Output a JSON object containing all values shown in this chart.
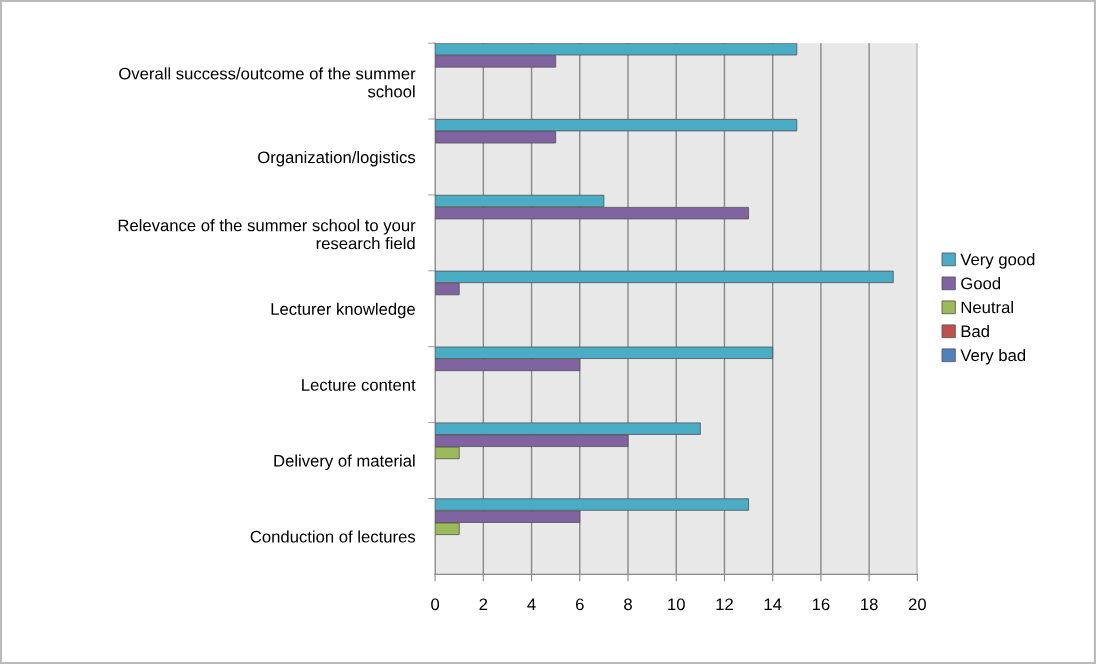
{
  "chart_data": {
    "type": "bar",
    "orientation": "horizontal",
    "categories": [
      "Overall success/outcome of the summer\nschool",
      "Organization/logistics",
      "Relevance of the summer school to your\nresearch field",
      "Lecturer knowledge",
      "Lecture content",
      "Delivery of material",
      "Conduction of lectures"
    ],
    "series": [
      {
        "name": "Very good",
        "color": "#4bacc6",
        "values": [
          15,
          15,
          7,
          19,
          14,
          11,
          13
        ]
      },
      {
        "name": "Good",
        "color": "#8064a2",
        "values": [
          5,
          5,
          13,
          1,
          6,
          8,
          6
        ]
      },
      {
        "name": "Neutral",
        "color": "#9bbb59",
        "values": [
          0,
          0,
          0,
          0,
          0,
          1,
          1
        ]
      },
      {
        "name": "Bad",
        "color": "#c0504d",
        "values": [
          0,
          0,
          0,
          0,
          0,
          0,
          0
        ]
      },
      {
        "name": "Very bad",
        "color": "#4f81bd",
        "values": [
          0,
          0,
          0,
          0,
          0,
          0,
          0
        ]
      }
    ],
    "xlim": [
      0,
      20
    ],
    "xticks": [
      0,
      2,
      4,
      6,
      8,
      10,
      12,
      14,
      16,
      18,
      20
    ],
    "grid": "x",
    "legend": "right"
  }
}
